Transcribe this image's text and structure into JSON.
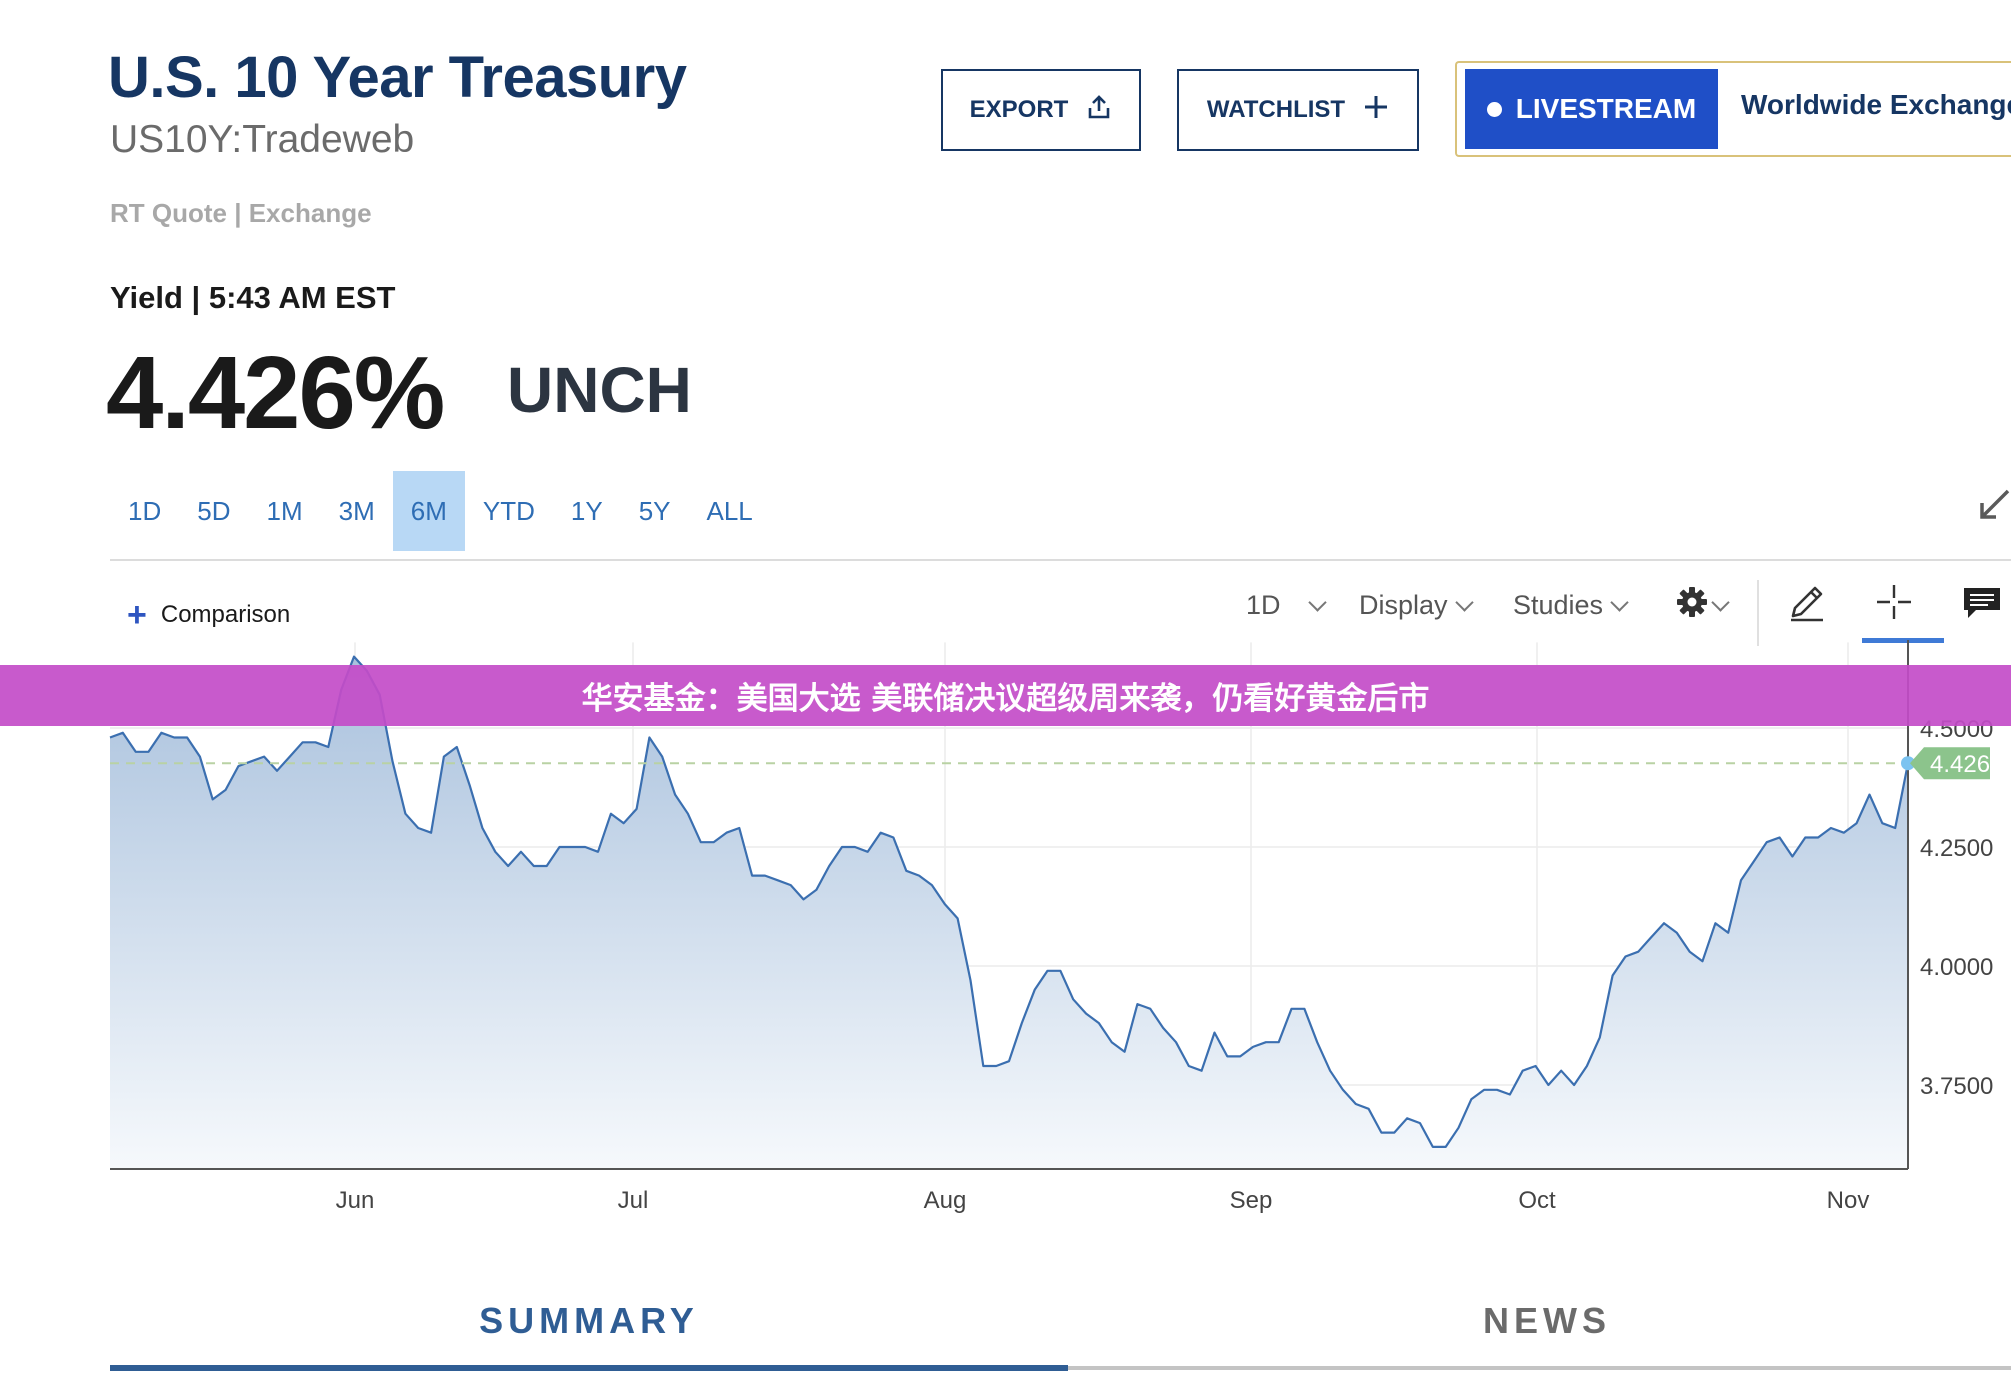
{
  "header": {
    "title": "U.S. 10 Year Treasury",
    "symbol": "US10Y:Tradeweb",
    "quote_source": "RT Quote | Exchange",
    "export_label": "EXPORT",
    "watchlist_label": "WATCHLIST",
    "livestream_label": "LIVESTREAM",
    "livestream_channel": "Worldwide Exchange"
  },
  "quote": {
    "yield_label": "Yield | 5:43 AM EST",
    "price": "4.426%",
    "change": "UNCH"
  },
  "range_tabs": [
    {
      "label": "1D",
      "active": false
    },
    {
      "label": "5D",
      "active": false
    },
    {
      "label": "1M",
      "active": false
    },
    {
      "label": "3M",
      "active": false
    },
    {
      "label": "6M",
      "active": true
    },
    {
      "label": "YTD",
      "active": false
    },
    {
      "label": "1Y",
      "active": false
    },
    {
      "label": "5Y",
      "active": false
    },
    {
      "label": "ALL",
      "active": false
    }
  ],
  "toolbar": {
    "comparison_label": "Comparison",
    "interval_label": "1D",
    "display_label": "Display",
    "studies_label": "Studies"
  },
  "banner": {
    "text": "华安基金：美国大选 美联储决议超级周来袭，仍看好黄金后市"
  },
  "colors": {
    "title": "#163663",
    "line": "#3b6fb0",
    "active_tab": "#b8d8f5",
    "livestream": "#1f4fc7",
    "current_marker": "#8cc48c",
    "banner": "#c34cc8"
  },
  "chart_data": {
    "type": "area",
    "title": "",
    "x_labels": [
      "Jun",
      "Jul",
      "Aug",
      "Sep",
      "Oct",
      "Nov"
    ],
    "y_ticks": [
      "4.5000",
      "4.2500",
      "4.0000",
      "3.7500"
    ],
    "ylim": [
      3.58,
      4.68
    ],
    "current_value": "4.4260",
    "current_reference": 4.426,
    "grid": true,
    "series": [
      {
        "values": [
          4.48,
          4.49,
          4.45,
          4.45,
          4.49,
          4.48,
          4.48,
          4.44,
          4.35,
          4.37,
          4.42,
          4.43,
          4.44,
          4.41,
          4.44,
          4.47,
          4.47,
          4.46,
          4.58,
          4.65,
          4.62,
          4.57,
          4.43,
          4.32,
          4.29,
          4.28,
          4.44,
          4.46,
          4.38,
          4.29,
          4.24,
          4.21,
          4.24,
          4.21,
          4.21,
          4.25,
          4.25,
          4.25,
          4.24,
          4.32,
          4.3,
          4.33,
          4.48,
          4.44,
          4.36,
          4.32,
          4.26,
          4.26,
          4.28,
          4.29,
          4.19,
          4.19,
          4.18,
          4.17,
          4.14,
          4.16,
          4.21,
          4.25,
          4.25,
          4.24,
          4.28,
          4.27,
          4.2,
          4.19,
          4.17,
          4.13,
          4.1,
          3.97,
          3.79,
          3.79,
          3.8,
          3.88,
          3.95,
          3.99,
          3.99,
          3.93,
          3.9,
          3.88,
          3.84,
          3.82,
          3.92,
          3.91,
          3.87,
          3.84,
          3.79,
          3.78,
          3.86,
          3.81,
          3.81,
          3.83,
          3.84,
          3.84,
          3.91,
          3.91,
          3.84,
          3.78,
          3.74,
          3.71,
          3.7,
          3.65,
          3.65,
          3.68,
          3.67,
          3.62,
          3.62,
          3.66,
          3.72,
          3.74,
          3.74,
          3.73,
          3.78,
          3.79,
          3.75,
          3.78,
          3.75,
          3.79,
          3.85,
          3.98,
          4.02,
          4.03,
          4.06,
          4.09,
          4.07,
          4.03,
          4.01,
          4.09,
          4.07,
          4.18,
          4.22,
          4.26,
          4.27,
          4.23,
          4.27,
          4.27,
          4.29,
          4.28,
          4.3,
          4.36,
          4.3,
          4.29,
          4.426
        ]
      }
    ]
  }
}
